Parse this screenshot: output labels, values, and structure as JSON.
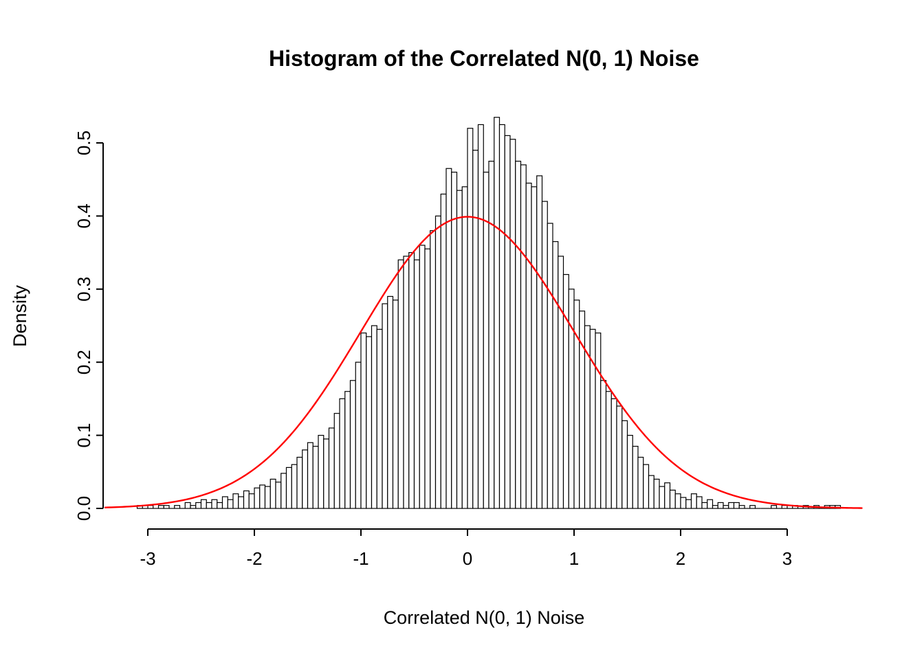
{
  "chart_data": {
    "type": "histogram",
    "title": "Histogram of the Correlated N(0, 1) Noise",
    "xlabel": "Correlated N(0, 1) Noise",
    "ylabel": "Density",
    "xlim": [
      -3.45,
      3.75
    ],
    "ylim": [
      0,
      0.535
    ],
    "x_tick_values": [
      -3,
      -2,
      -1,
      0,
      1,
      2,
      3
    ],
    "x_tick_labels": [
      "-3",
      "-2",
      "-1",
      "0",
      "1",
      "2",
      "3"
    ],
    "y_tick_values": [
      0.0,
      0.1,
      0.2,
      0.3,
      0.4,
      0.5
    ],
    "y_tick_labels": [
      "0.0",
      "0.1",
      "0.2",
      "0.3",
      "0.4",
      "0.5"
    ],
    "bin_start": -3.1,
    "bin_width": 0.05,
    "bar_heights": [
      0.004,
      0,
      0.004,
      0,
      0.004,
      0.004,
      0,
      0.004,
      0,
      0.008,
      0.004,
      0.008,
      0.012,
      0.008,
      0.012,
      0.008,
      0.016,
      0.012,
      0.02,
      0.016,
      0.024,
      0.02,
      0.028,
      0.032,
      0.03,
      0.04,
      0.036,
      0.048,
      0.056,
      0.06,
      0.07,
      0.08,
      0.09,
      0.085,
      0.1,
      0.095,
      0.11,
      0.13,
      0.15,
      0.16,
      0.175,
      0.2,
      0.24,
      0.235,
      0.25,
      0.245,
      0.28,
      0.29,
      0.285,
      0.34,
      0.345,
      0.35,
      0.34,
      0.36,
      0.355,
      0.38,
      0.4,
      0.43,
      0.465,
      0.46,
      0.435,
      0.44,
      0.52,
      0.49,
      0.525,
      0.46,
      0.475,
      0.535,
      0.525,
      0.51,
      0.505,
      0.475,
      0.47,
      0.445,
      0.44,
      0.455,
      0.42,
      0.39,
      0.365,
      0.345,
      0.32,
      0.3,
      0.285,
      0.27,
      0.25,
      0.245,
      0.24,
      0.175,
      0.16,
      0.15,
      0.14,
      0.12,
      0.1,
      0.085,
      0.07,
      0.06,
      0.045,
      0.04,
      0.03,
      0.035,
      0.025,
      0.02,
      0.015,
      0.012,
      0.02,
      0.016,
      0.008,
      0.012,
      0.004,
      0.008,
      0.004,
      0.008,
      0.008,
      0.004,
      0,
      0.004,
      0,
      0,
      0,
      0.004,
      0,
      0.004,
      0,
      0.004,
      0,
      0.004,
      0,
      0.004,
      0,
      0.004,
      0.004,
      0.004
    ],
    "bar_fill": "#ffffff",
    "bar_stroke": "#000000",
    "curve": {
      "name": "standard-normal-density",
      "distribution": "normal",
      "mean": 0,
      "sd": 1,
      "x_range": [
        -3.4,
        3.7
      ],
      "color": "#ff0000"
    }
  }
}
